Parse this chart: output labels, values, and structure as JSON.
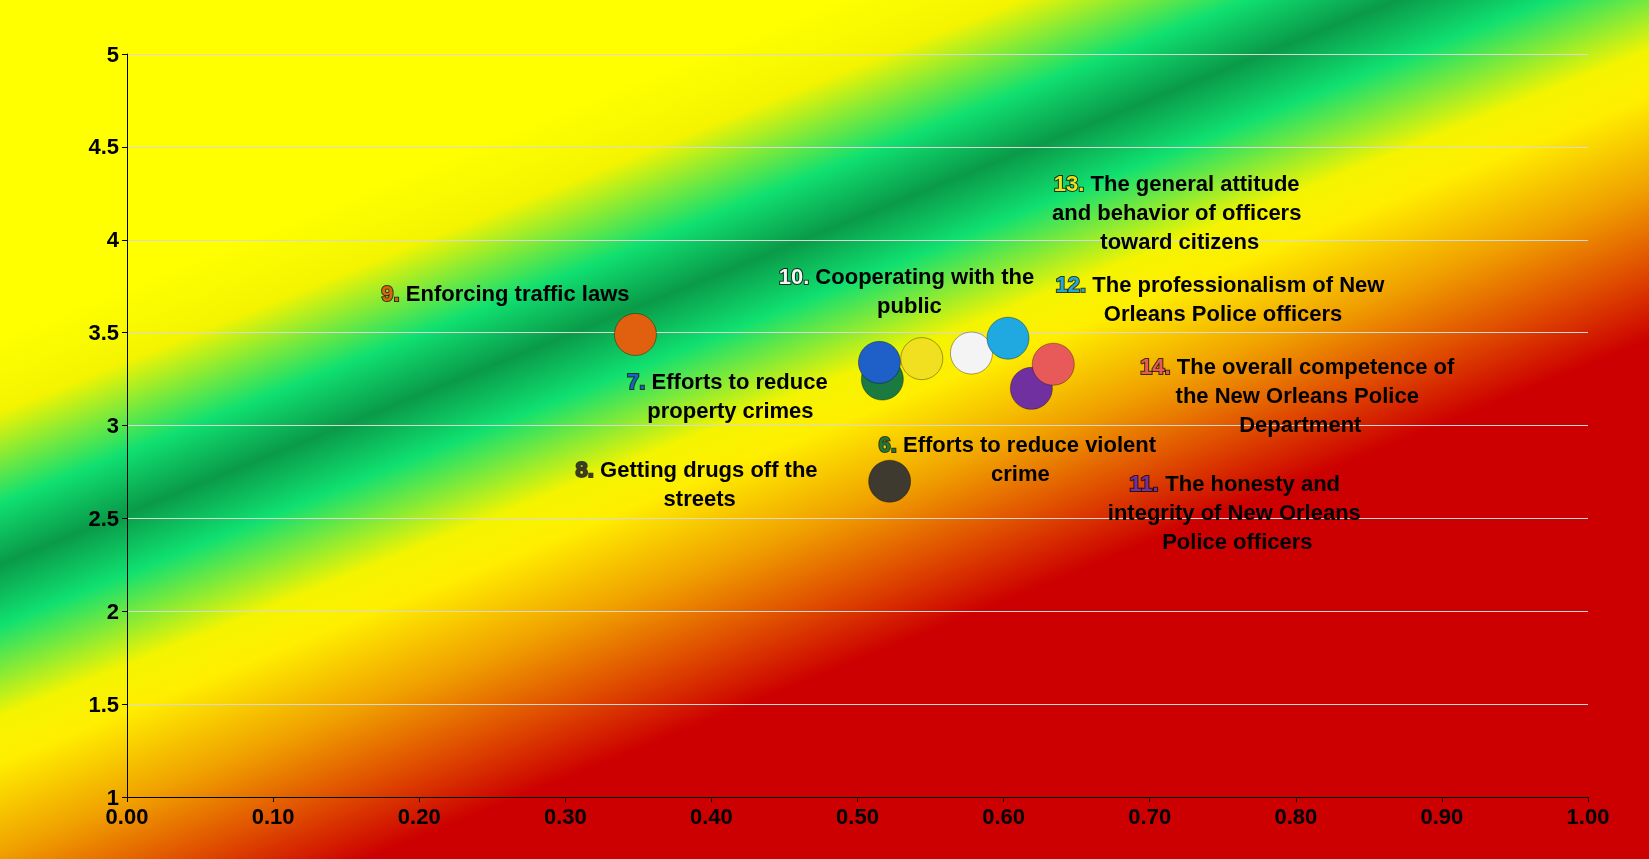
{
  "chart_data": {
    "type": "scatter",
    "xlim": [
      0,
      1
    ],
    "xticks": [
      {
        "value": 0,
        "label": "0.00"
      },
      {
        "value": 0.1,
        "label": "0.10"
      },
      {
        "value": 0.2,
        "label": "0.20"
      },
      {
        "value": 0.3,
        "label": "0.30"
      },
      {
        "value": 0.4,
        "label": "0.40"
      },
      {
        "value": 0.5,
        "label": "0.50"
      },
      {
        "value": 0.6,
        "label": "0.60"
      },
      {
        "value": 0.7,
        "label": "0.70"
      },
      {
        "value": 0.8,
        "label": "0.80"
      },
      {
        "value": 0.9,
        "label": "0.90"
      },
      {
        "value": 1,
        "label": "1.00"
      }
    ],
    "ylim": [
      1,
      5
    ],
    "yticks": [
      1,
      1.5,
      2,
      2.5,
      3,
      3.5,
      4,
      4.5,
      5
    ],
    "grid": "y",
    "legend": false,
    "marker": "circle",
    "series": [
      {
        "name": "6. Efforts to reduce violent crime",
        "color": "#1a7a40",
        "x": [
          0.517
        ],
        "values": [
          3.25
        ]
      },
      {
        "name": "7. Efforts to reduce property crimes",
        "color": "#1f5fc8",
        "x": [
          0.515
        ],
        "values": [
          3.34
        ]
      },
      {
        "name": "8. Getting drugs off the streets",
        "color": "#3e3a30",
        "x": [
          0.522
        ],
        "values": [
          2.7
        ]
      },
      {
        "name": "9. Enforcing traffic laws",
        "color": "#e06010",
        "x": [
          0.348
        ],
        "values": [
          3.49
        ]
      },
      {
        "name": "10. Cooperating with the public",
        "color": "#f4f4f4",
        "x": [
          0.578
        ],
        "values": [
          3.39
        ]
      },
      {
        "name": "11. The honesty and integrity of New Orleans Police officers",
        "color": "#7030a0",
        "x": [
          0.619
        ],
        "values": [
          3.2
        ]
      },
      {
        "name": "12. The professionalism of New Orleans Police officers",
        "color": "#20a8e0",
        "x": [
          0.603
        ],
        "values": [
          3.47
        ]
      },
      {
        "name": "13. The general attitude and behavior of officers toward citizens",
        "color": "#f0e020",
        "x": [
          0.544
        ],
        "values": [
          3.36
        ]
      },
      {
        "name": "14. The overall competence of the New Orleans Police Department",
        "color": "#e85a5a",
        "x": [
          0.634
        ],
        "values": [
          3.33
        ]
      }
    ]
  }
}
